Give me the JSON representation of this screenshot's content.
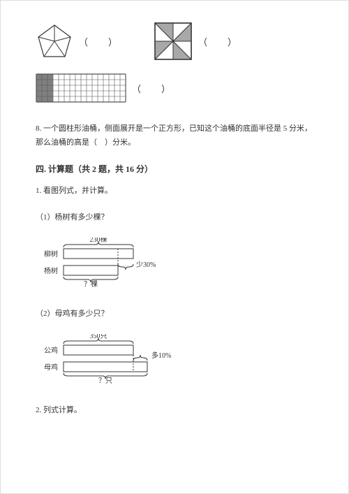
{
  "shapes": {
    "pentagon": {
      "outer_stroke": "#333333",
      "inner_stroke": "#333333",
      "fill": "#ffffff",
      "paren": "（　）"
    },
    "square": {
      "outer_stroke": "#333333",
      "shade_fill": "#a8a8a8",
      "paren": "（　）"
    },
    "grid": {
      "cols": 16,
      "rows": 5,
      "cell": 8,
      "stroke": "#555555",
      "fill_cols": 3,
      "shade_fill": "#808080",
      "paren": "（　）"
    }
  },
  "q8": {
    "text": "8. 一个圆柱形油桶，侧面展开是一个正方形，已知这个油桶的底面半径是 5 分米，那么油桶的高是（　）分米。"
  },
  "section4": {
    "title": "四. 计算题（共 2 题，共 16 分）",
    "q1": "1. 看图列式，并计算。",
    "q1_1": "（1）杨树有多少棵？",
    "q1_2": "（2）母鸡有多少只？",
    "q2": "2. 列式计算。"
  },
  "diagram1": {
    "top_value": "230棵",
    "row1_label": "柳树",
    "diff_label": "少30%",
    "row2_label": "杨树",
    "unknown": "？棵",
    "stroke": "#333333",
    "text_color": "#333333",
    "font_size": 10
  },
  "diagram2": {
    "top_value": "350只",
    "row1_label": "公鸡",
    "diff_label": "多10%",
    "row2_label": "母鸡",
    "unknown": "？只",
    "stroke": "#333333",
    "text_color": "#333333",
    "font_size": 10
  }
}
